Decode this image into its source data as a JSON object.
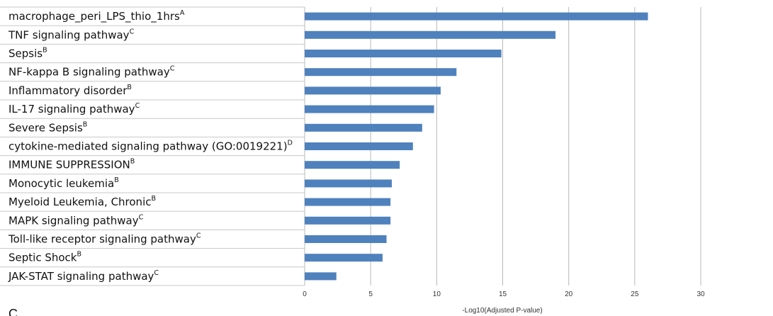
{
  "chart_data": {
    "type": "bar",
    "orientation": "horizontal",
    "xlabel": "-Log10(Adjusted P-value)",
    "xlim": [
      0,
      30
    ],
    "xticks": [
      0,
      5,
      10,
      15,
      20,
      25,
      30
    ],
    "grid": "vertical",
    "colors": {
      "bar": "#4f81bd",
      "grid": "#b8b8b8",
      "row_line": "#c8c8c8"
    },
    "categories": [
      {
        "label": "macrophage_peri_LPS_thio_1hrs",
        "sup": "A",
        "value": 26.0
      },
      {
        "label": "TNF signaling pathway",
        "sup": "C",
        "value": 19.0
      },
      {
        "label": "Sepsis",
        "sup": "B",
        "value": 14.9
      },
      {
        "label": "NF-kappa B signaling pathway",
        "sup": "C",
        "value": 11.5
      },
      {
        "label": "Inflammatory disorder",
        "sup": "B",
        "value": 10.3
      },
      {
        "label": "IL-17 signaling pathway",
        "sup": "C",
        "value": 9.8
      },
      {
        "label": "Severe Sepsis",
        "sup": "B",
        "value": 8.9
      },
      {
        "label": "cytokine-mediated signaling pathway (GO:0019221)",
        "sup": "D",
        "value": 8.2
      },
      {
        "label": "IMMUNE SUPPRESSION",
        "sup": "B",
        "value": 7.2
      },
      {
        "label": "Monocytic leukemia",
        "sup": "B",
        "value": 6.6
      },
      {
        "label": "Myeloid Leukemia, Chronic",
        "sup": "B",
        "value": 6.5
      },
      {
        "label": "MAPK signaling pathway",
        "sup": "C",
        "value": 6.5
      },
      {
        "label": "Toll-like receptor signaling pathway",
        "sup": "C",
        "value": 6.2
      },
      {
        "label": "Septic Shock",
        "sup": "B",
        "value": 5.9
      },
      {
        "label": "JAK-STAT signaling pathway",
        "sup": "C",
        "value": 2.4
      }
    ]
  },
  "panel_letter": "C"
}
